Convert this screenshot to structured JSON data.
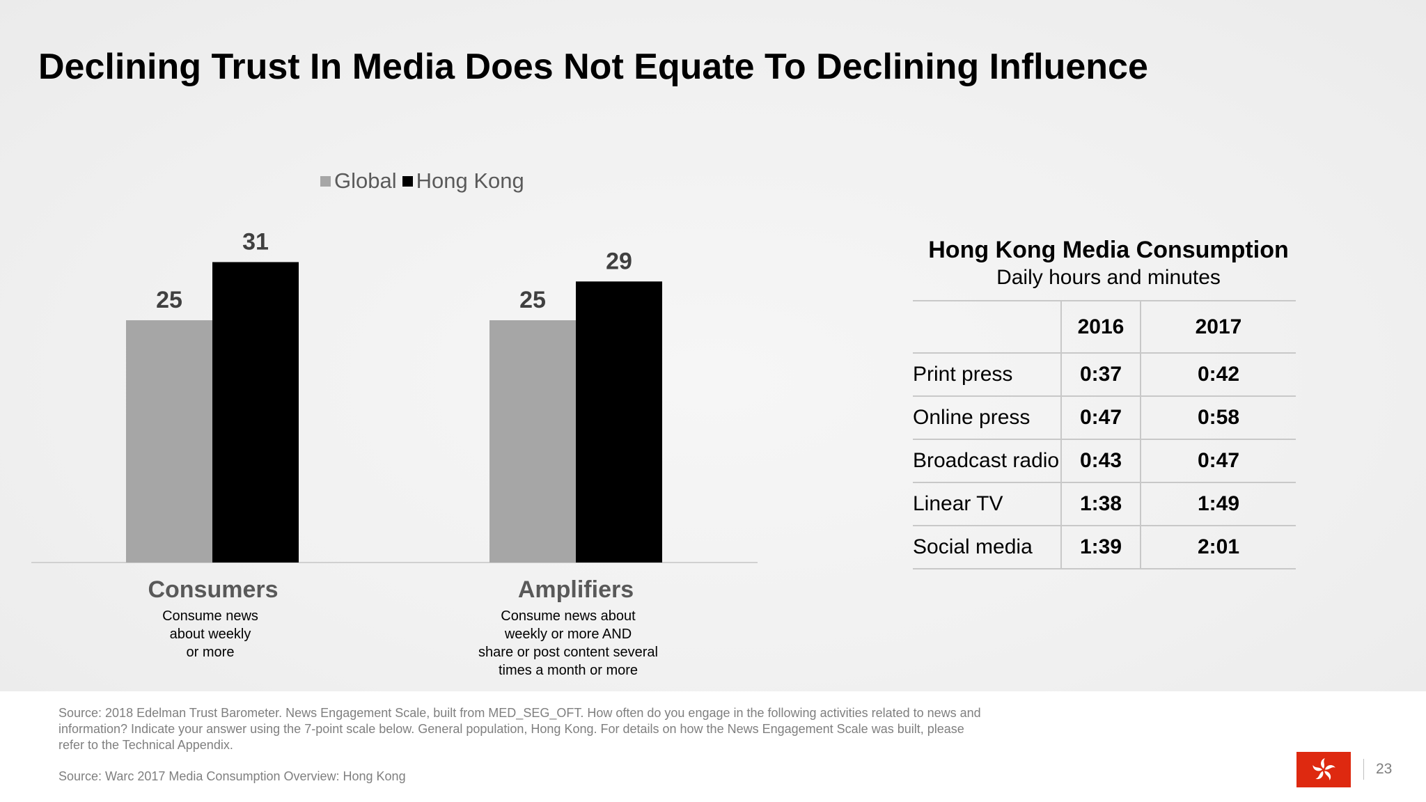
{
  "title": "Declining Trust In Media Does Not Equate To Declining Influence",
  "chart_data": {
    "type": "bar",
    "categories": [
      "Consumers",
      "Amplifiers"
    ],
    "category_descriptions": [
      [
        "Consume news",
        "about weekly",
        "or more"
      ],
      [
        "Consume news about",
        "weekly or more AND",
        "share or post content several",
        "times a month or more"
      ]
    ],
    "series": [
      {
        "name": "Global",
        "values": [
          25,
          25
        ],
        "color": "#a6a6a6"
      },
      {
        "name": "Hong Kong",
        "values": [
          31,
          29
        ],
        "color": "#000000"
      }
    ],
    "ylim": [
      0,
      35
    ],
    "legend_position": "top",
    "grid": false,
    "data_labels": true
  },
  "table": {
    "title": "Hong Kong Media Consumption",
    "subtitle": "Daily hours and minutes",
    "columns": [
      "2016",
      "2017"
    ],
    "rows": [
      {
        "label": "Print press",
        "values": [
          "0:37",
          "0:42"
        ]
      },
      {
        "label": "Online press",
        "values": [
          "0:47",
          "0:58"
        ]
      },
      {
        "label": "Broadcast radio",
        "values": [
          "0:43",
          "0:47"
        ]
      },
      {
        "label": "Linear TV",
        "values": [
          "1:38",
          "1:49"
        ]
      },
      {
        "label": "Social media",
        "values": [
          "1:39",
          "2:01"
        ]
      }
    ]
  },
  "footer": {
    "source1": "Source: 2018 Edelman Trust Barometer. News Engagement Scale, built from MED_SEG_OFT. How often do you engage in the following activities related to news and information? Indicate your answer using the 7-point scale below. General population, Hong Kong. For details on how the News Engagement Scale was built, please refer to the Technical Appendix.",
    "source2": "Source: Warc 2017 Media Consumption Overview: Hong Kong",
    "page_number": "23",
    "flag_icon": "hong-kong-flag-icon",
    "flag_color": "#de2910"
  }
}
